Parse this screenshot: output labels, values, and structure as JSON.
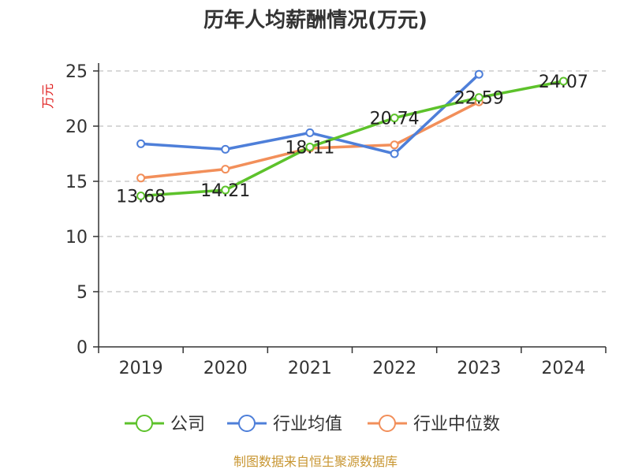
{
  "chart_data": {
    "type": "line",
    "title": "历年人均薪酬情况(万元)",
    "ylabel": "万元",
    "xlabel": "",
    "categories": [
      "2019",
      "2020",
      "2021",
      "2022",
      "2023",
      "2024"
    ],
    "ylim": [
      0,
      25
    ],
    "yticks": [
      0,
      5,
      10,
      15,
      20,
      25
    ],
    "grid": true,
    "legend_position": "bottom",
    "series": [
      {
        "name": "公司",
        "color": "#5dc22b",
        "values": [
          13.68,
          14.21,
          18.11,
          20.74,
          22.59,
          24.07
        ],
        "labels": [
          "13.68",
          "14.21",
          "18.11",
          "20.74",
          "22.59",
          "24.07"
        ]
      },
      {
        "name": "行业均值",
        "color": "#4e7fd9",
        "values": [
          18.4,
          17.9,
          19.4,
          17.5,
          24.7,
          null
        ]
      },
      {
        "name": "行业中位数",
        "color": "#f28f5a",
        "values": [
          15.3,
          16.1,
          18.0,
          18.3,
          22.2,
          null
        ]
      }
    ]
  },
  "source": "制图数据来自恒生聚源数据库"
}
